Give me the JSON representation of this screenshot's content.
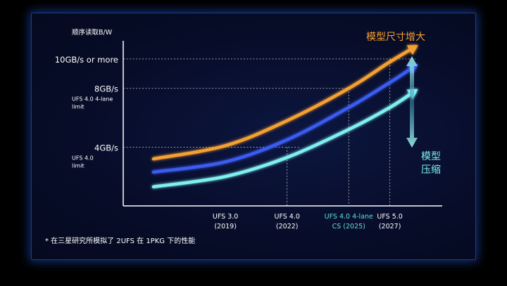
{
  "chart_data": {
    "type": "line",
    "ylabel": "顺序读取B/W",
    "y_ticks": [
      {
        "value": 4,
        "label": "4GB/s",
        "sublabel": "UFS 4.0\nlimit"
      },
      {
        "value": 8,
        "label": "8GB/s",
        "sublabel": "UFS 4.0 4-lane\nlimit"
      },
      {
        "value": 10,
        "label": "10GB/s or more",
        "sublabel": ""
      }
    ],
    "x_ticks": [
      {
        "year": 2019,
        "label": "UFS 3.0",
        "sublabel": "(2019)",
        "color": "#ffffff"
      },
      {
        "year": 2022,
        "label": "UFS 4.0",
        "sublabel": "(2022)",
        "color": "#ffffff"
      },
      {
        "year": 2025,
        "label": "UFS 4.0 4-lane",
        "sublabel": "CS (2025)",
        "color": "#5fe0d8"
      },
      {
        "year": 2027,
        "label": "UFS 5.0",
        "sublabel": "(2027)",
        "color": "#ffffff"
      }
    ],
    "xlim": [
      2015.5,
      2029
    ],
    "ylim": [
      0,
      11
    ],
    "series": [
      {
        "color": "#f5a030",
        "x": [
          2015.5,
          2019,
          2022,
          2025,
          2027,
          2028.2
        ],
        "y": [
          3.2,
          4.1,
          5.8,
          8.0,
          9.8,
          10.8
        ]
      },
      {
        "color": "#3a5cf0",
        "x": [
          2015.5,
          2019,
          2022,
          2025,
          2027,
          2028.2
        ],
        "y": [
          2.3,
          3.0,
          4.5,
          6.7,
          8.4,
          9.5
        ]
      },
      {
        "color": "#7ff0f0",
        "x": [
          2015.5,
          2019,
          2022,
          2025,
          2027,
          2028.2
        ],
        "y": [
          1.3,
          2.0,
          3.3,
          5.2,
          6.7,
          7.8
        ]
      }
    ],
    "annotations": {
      "model_growth": "模型尺寸增大",
      "model_compress_1": "模型",
      "model_compress_2": "压缩"
    },
    "footnote": "* 在三星研究所模拟了 2UFS 在 1PKG 下的性能"
  }
}
